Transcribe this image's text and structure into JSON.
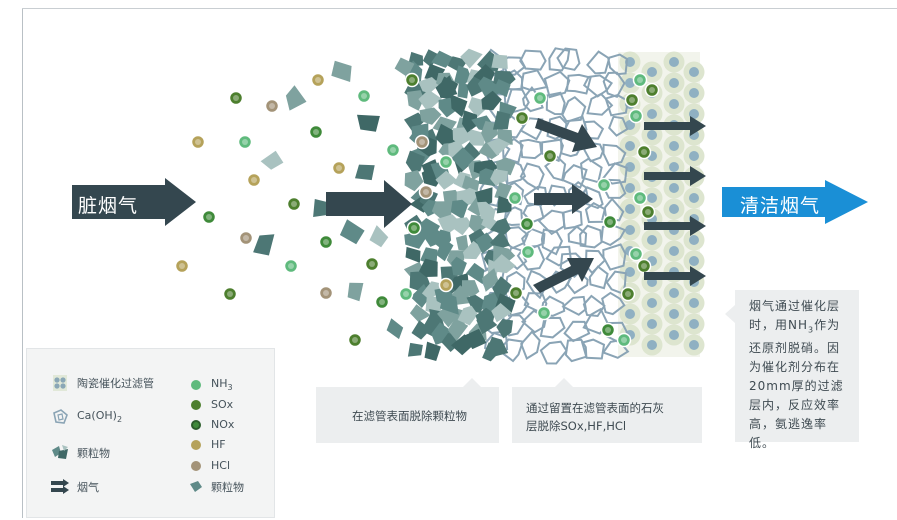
{
  "labels": {
    "dirty_gas": "脏烟气",
    "clean_gas": "清洁烟气"
  },
  "callouts": {
    "particle_removal": "在滤管表面脱除颗粒物",
    "lime_removal_line1": "通过留置在滤管表面的石灰",
    "lime_removal_line2": "层脱除SOx,HF,HCl"
  },
  "side_note": {
    "line1": "烟气通过催化层",
    "line2_pre": "时，用NH",
    "line2_sub": "3",
    "line2_post": "作为",
    "line3": "还原剂脱硝。因",
    "line4": "为催化剂分布在",
    "line5": "20mm厚的过滤",
    "line6": "层内，反应效率",
    "line7": "高，氨逃逸率低。"
  },
  "legend": {
    "ceramic_filter": "陶瓷催化过滤管",
    "caoh2_pre": "Ca(OH)",
    "caoh2_sub": "2",
    "particles": "颗粒物",
    "flue_gas": "烟气",
    "nh3_pre": "NH",
    "nh3_sub": "3",
    "sox": "SOx",
    "nox": "NOx",
    "hf": "HF",
    "hcl": "HCl",
    "particle_small": "颗粒物"
  },
  "colors": {
    "dark_arrow": "#34474f",
    "clean_arrow": "#1a8fd6",
    "nh3": "#5fba7d",
    "sox": "#4d7f2e",
    "nox": "#3f8a3a",
    "hf": "#b5a25a",
    "hcl": "#a39378",
    "particle": "#5f8a88",
    "particle_light": "#a9c2c0",
    "lime": "#8aa2b2",
    "ceramic": "#dfe6d3"
  }
}
